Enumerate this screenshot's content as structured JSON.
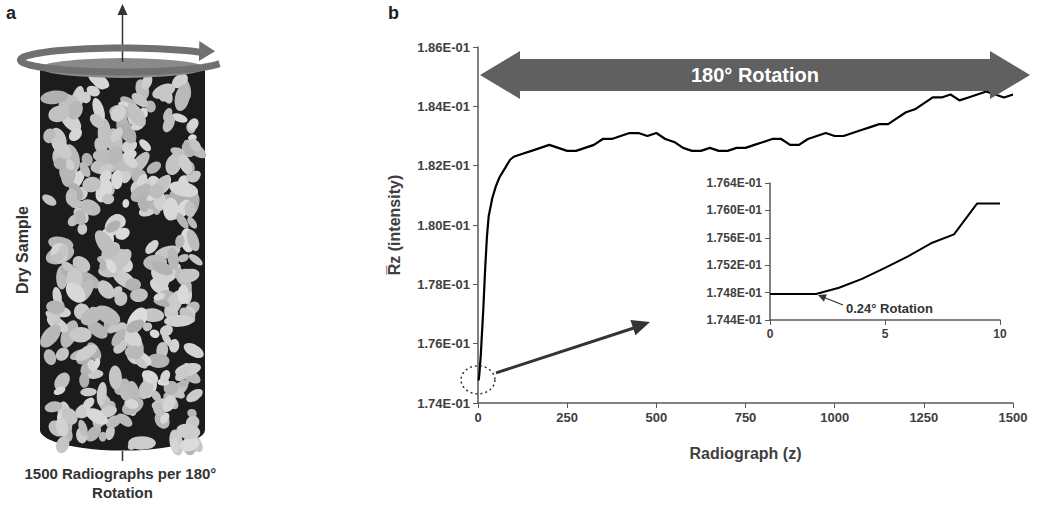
{
  "panel_a": {
    "letter": "a",
    "label": "Dry Sample",
    "caption": "1500 Radiographs per 180° Rotation"
  },
  "chart_data": [
    {
      "type": "line",
      "panel": "b",
      "annotation": "180° Rotation",
      "x_label": "Radiograph (z)",
      "y_label": "R̅z (intensity)",
      "x": [
        0,
        2,
        4,
        6,
        8,
        10,
        15,
        20,
        25,
        30,
        40,
        50,
        60,
        75,
        90,
        100,
        125,
        150,
        175,
        200,
        225,
        250,
        275,
        300,
        325,
        350,
        375,
        400,
        425,
        450,
        475,
        500,
        525,
        550,
        575,
        600,
        625,
        650,
        675,
        700,
        725,
        750,
        775,
        800,
        825,
        850,
        875,
        900,
        925,
        950,
        975,
        1000,
        1025,
        1050,
        1075,
        1100,
        1125,
        1150,
        1175,
        1200,
        1225,
        1250,
        1275,
        1300,
        1325,
        1350,
        1375,
        1400,
        1425,
        1450,
        1475,
        1500
      ],
      "values": [
        0.17478,
        0.17478,
        0.175,
        0.17533,
        0.17565,
        0.1761,
        0.1772,
        0.1785,
        0.1796,
        0.1803,
        0.1809,
        0.1813,
        0.1816,
        0.1819,
        0.1822,
        0.1823,
        0.1824,
        0.1825,
        0.1826,
        0.1827,
        0.1826,
        0.1825,
        0.1825,
        0.1826,
        0.1827,
        0.1829,
        0.1829,
        0.183,
        0.1831,
        0.1831,
        0.183,
        0.1831,
        0.1829,
        0.1828,
        0.1826,
        0.1825,
        0.1825,
        0.1826,
        0.1825,
        0.1825,
        0.1826,
        0.1826,
        0.1827,
        0.1828,
        0.1829,
        0.1829,
        0.1827,
        0.1827,
        0.1829,
        0.183,
        0.1831,
        0.183,
        0.183,
        0.1831,
        0.1832,
        0.1833,
        0.1834,
        0.1834,
        0.1836,
        0.1838,
        0.1839,
        0.1841,
        0.1843,
        0.1843,
        0.1844,
        0.1842,
        0.1843,
        0.1844,
        0.1845,
        0.1844,
        0.1843,
        0.1844
      ],
      "color": "#000000",
      "xlim": [
        0,
        1500
      ],
      "xticks": [
        0,
        250,
        500,
        750,
        1000,
        1250,
        1500
      ],
      "ylim": [
        0.174,
        0.186
      ],
      "yticks": [
        {
          "value": 0.174,
          "label": "1.74E-01"
        },
        {
          "value": 0.176,
          "label": "1.76E-01"
        },
        {
          "value": 0.178,
          "label": "1.78E-01"
        },
        {
          "value": 0.18,
          "label": "1.80E-01"
        },
        {
          "value": 0.182,
          "label": "1.82E-01"
        },
        {
          "value": 0.184,
          "label": "1.84E-01"
        },
        {
          "value": 0.186,
          "label": "1.86E-01"
        }
      ],
      "grid": false
    },
    {
      "type": "line",
      "x": [
        0,
        1,
        2,
        3,
        4,
        5,
        6,
        7,
        8,
        9,
        10
      ],
      "values": [
        0.17478,
        0.17478,
        0.17478,
        0.17487,
        0.175,
        0.17516,
        0.17533,
        0.17552,
        0.17565,
        0.1761,
        0.1761
      ],
      "color": "#000000",
      "xlim": [
        0,
        10
      ],
      "xticks": [
        0,
        5,
        10
      ],
      "ylim": [
        0.1744,
        0.1764
      ],
      "yticks": [
        {
          "value": 0.1744,
          "label": "1.744E-01"
        },
        {
          "value": 0.1748,
          "label": "1.748E-01"
        },
        {
          "value": 0.1752,
          "label": "1.752E-01"
        },
        {
          "value": 0.1756,
          "label": "1.756E-01"
        },
        {
          "value": 0.176,
          "label": "1.760E-01"
        },
        {
          "value": 0.1764,
          "label": "1.764E-01"
        }
      ],
      "annotation": {
        "text": "0.24° Rotation",
        "x": 2,
        "y": 0.17478
      },
      "grid": false
    }
  ]
}
